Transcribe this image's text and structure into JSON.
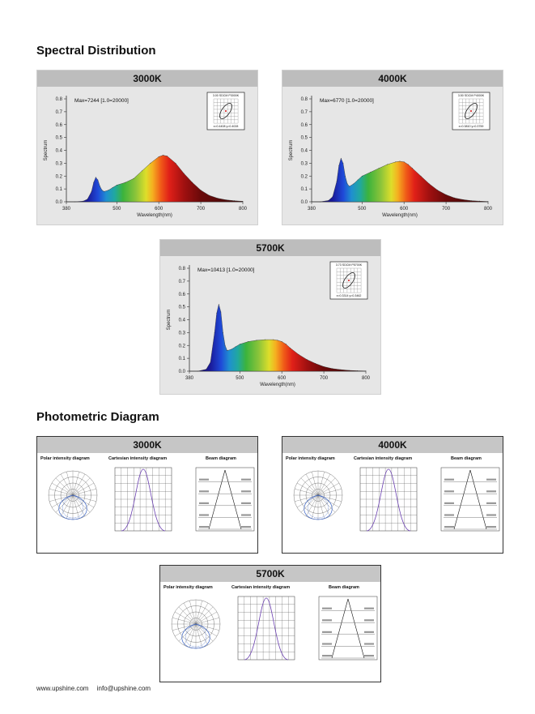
{
  "headings": {
    "spectral": "Spectral Distribution",
    "photometric": "Photometric Diagram"
  },
  "spectral_cards": [
    {
      "cct": "3000K",
      "max_label": "Max=7244  [1.0=20000]",
      "inset_title": "3.00 SDCM  P3000K",
      "inset_coords": "x=0.4408  y=0.4028",
      "y_axis_label": "Spectrum",
      "x_axis_label": "Wavelength(nm)"
    },
    {
      "cct": "4000K",
      "max_label": "Max=6770  [1.0=20000]",
      "inset_title": "3.50 SDCM  P4000K",
      "inset_coords": "x=0.3810  y=0.3759",
      "y_axis_label": "Spectrum",
      "x_axis_label": "Wavelength(nm)"
    },
    {
      "cct": "5700K",
      "max_label": "Max=10413  [1.0=20000]",
      "inset_title": "3.73 SDCM  P5700K",
      "inset_coords": "x=0.3314  y=0.3462",
      "y_axis_label": "Spectrum",
      "x_axis_label": "Wavelength(nm)"
    }
  ],
  "chart_data": [
    {
      "type": "area",
      "title": "3000K",
      "xlabel": "Wavelength(nm)",
      "ylabel": "Spectrum",
      "x_ticks": [
        "380",
        "500",
        "600",
        "700",
        "800"
      ],
      "y_ticks": [
        "0.0",
        "0.1",
        "0.2",
        "0.3",
        "0.4",
        "0.5",
        "0.6",
        "0.7",
        "0.8"
      ],
      "xlim": [
        380,
        800
      ],
      "ylim": [
        0,
        0.8
      ],
      "annotation": "Max=7244  [1.0=20000]",
      "x": [
        380,
        400,
        420,
        430,
        440,
        445,
        450,
        455,
        460,
        465,
        470,
        480,
        490,
        500,
        520,
        540,
        560,
        580,
        600,
        610,
        620,
        640,
        660,
        680,
        700,
        720,
        740,
        760,
        780,
        800
      ],
      "values": [
        0,
        0,
        0.005,
        0.02,
        0.08,
        0.15,
        0.19,
        0.17,
        0.12,
        0.09,
        0.08,
        0.09,
        0.11,
        0.13,
        0.15,
        0.18,
        0.24,
        0.3,
        0.35,
        0.362,
        0.355,
        0.3,
        0.22,
        0.15,
        0.09,
        0.05,
        0.028,
        0.015,
        0.008,
        0.004
      ]
    },
    {
      "type": "area",
      "title": "4000K",
      "xlabel": "Wavelength(nm)",
      "ylabel": "Spectrum",
      "x_ticks": [
        "380",
        "500",
        "600",
        "700",
        "800"
      ],
      "y_ticks": [
        "0.0",
        "0.1",
        "0.2",
        "0.3",
        "0.4",
        "0.5",
        "0.6",
        "0.7",
        "0.8"
      ],
      "xlim": [
        380,
        800
      ],
      "ylim": [
        0,
        0.8
      ],
      "annotation": "Max=6770  [1.0=20000]",
      "x": [
        380,
        400,
        420,
        430,
        440,
        445,
        450,
        455,
        460,
        465,
        470,
        480,
        490,
        500,
        520,
        540,
        560,
        580,
        590,
        600,
        610,
        620,
        640,
        660,
        680,
        700,
        720,
        740,
        760,
        780,
        800
      ],
      "values": [
        0,
        0,
        0.01,
        0.04,
        0.16,
        0.28,
        0.338,
        0.3,
        0.2,
        0.14,
        0.12,
        0.14,
        0.17,
        0.2,
        0.23,
        0.26,
        0.29,
        0.31,
        0.315,
        0.31,
        0.29,
        0.26,
        0.2,
        0.14,
        0.09,
        0.055,
        0.03,
        0.017,
        0.009,
        0.005,
        0.002
      ]
    },
    {
      "type": "area",
      "title": "5700K",
      "xlabel": "Wavelength(nm)",
      "ylabel": "Spectrum",
      "x_ticks": [
        "380",
        "500",
        "600",
        "700",
        "800"
      ],
      "y_ticks": [
        "0.0",
        "0.1",
        "0.2",
        "0.3",
        "0.4",
        "0.5",
        "0.6",
        "0.7",
        "0.8"
      ],
      "xlim": [
        380,
        800
      ],
      "ylim": [
        0,
        0.8
      ],
      "annotation": "Max=10413  [1.0=20000]",
      "x": [
        380,
        400,
        420,
        430,
        440,
        445,
        450,
        455,
        460,
        465,
        470,
        480,
        490,
        500,
        520,
        540,
        560,
        580,
        590,
        600,
        610,
        620,
        640,
        660,
        680,
        700,
        720,
        740,
        760,
        780,
        800
      ],
      "values": [
        0,
        0,
        0.015,
        0.07,
        0.3,
        0.45,
        0.52,
        0.46,
        0.3,
        0.2,
        0.16,
        0.17,
        0.19,
        0.21,
        0.23,
        0.24,
        0.245,
        0.245,
        0.24,
        0.23,
        0.21,
        0.18,
        0.13,
        0.09,
        0.06,
        0.035,
        0.02,
        0.012,
        0.006,
        0.003,
        0.001
      ]
    }
  ],
  "photo_cards": [
    {
      "cct": "3000K",
      "polar_title": "Polar intensity diagram",
      "cartesian_title": "Cartesian intensity diagram",
      "beam_title": "Beam diagram"
    },
    {
      "cct": "4000K",
      "polar_title": "Polar intensity diagram",
      "cartesian_title": "Cartesian intensity diagram",
      "beam_title": "Beam diagram"
    },
    {
      "cct": "5700K",
      "polar_title": "Polar intensity diagram",
      "cartesian_title": "Cartesian intensity diagram",
      "beam_title": "Beam diagram"
    }
  ],
  "footer": {
    "website": "www.upshine.com",
    "email": "info@upshine.com"
  }
}
